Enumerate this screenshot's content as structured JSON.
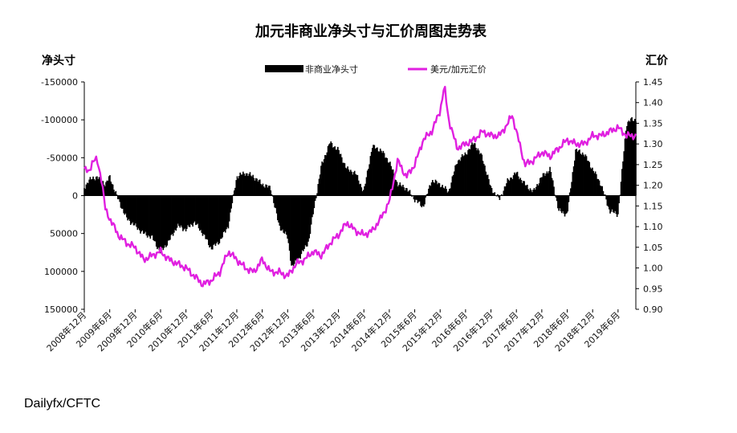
{
  "chart_data": {
    "type": "bar+line",
    "title": "加元非商业净头寸与汇价周图走势表",
    "left_axis_label": "净头寸",
    "right_axis_label": "汇价",
    "source": "Dailyfx/CFTC",
    "left_axis": {
      "min": -150000,
      "max": 150000,
      "reversed": true,
      "ticks": [
        "-150000",
        "-100000",
        "-50000",
        "0",
        "50000",
        "100000",
        "150000"
      ]
    },
    "right_axis": {
      "min": 0.9,
      "max": 1.45,
      "ticks": [
        "1.45",
        "1.40",
        "1.35",
        "1.30",
        "1.25",
        "1.20",
        "1.15",
        "1.10",
        "1.05",
        "1.00",
        "0.95",
        "0.90"
      ]
    },
    "x_tick_labels": [
      "2008年12月",
      "2009年6月",
      "2009年12月",
      "2010年6月",
      "2010年12月",
      "2011年6月",
      "2011年12月",
      "2012年6月",
      "2012年12月",
      "2013年6月",
      "2013年12月",
      "2014年6月",
      "2014年12月",
      "2015年6月",
      "2015年12月",
      "2016年6月",
      "2016年12月",
      "2017年6月",
      "2017年12月",
      "2018年6月",
      "2018年12月",
      "2019年6月"
    ],
    "legend": {
      "position": "top-center",
      "entries": [
        {
          "name": "非商业净头寸",
          "color": "#000000"
        },
        {
          "name": "美元/加元汇价",
          "color": "#e020e0"
        }
      ]
    },
    "series": [
      {
        "name": "非商业净头寸",
        "kind": "bar",
        "color": "#000000",
        "x": [
          "2008-12",
          "2009-01",
          "2009-03",
          "2009-05",
          "2009-06",
          "2009-08",
          "2009-10",
          "2009-12",
          "2010-02",
          "2010-04",
          "2010-06",
          "2010-08",
          "2010-10",
          "2010-12",
          "2011-02",
          "2011-04",
          "2011-06",
          "2011-08",
          "2011-10",
          "2011-12",
          "2012-02",
          "2012-04",
          "2012-06",
          "2012-08",
          "2012-10",
          "2012-12",
          "2013-01",
          "2013-03",
          "2013-05",
          "2013-06",
          "2013-08",
          "2013-10",
          "2013-12",
          "2014-02",
          "2014-04",
          "2014-06",
          "2014-08",
          "2014-10",
          "2014-12",
          "2015-02",
          "2015-04",
          "2015-06",
          "2015-08",
          "2015-10",
          "2015-12",
          "2016-02",
          "2016-04",
          "2016-06",
          "2016-08",
          "2016-10",
          "2016-12",
          "2017-02",
          "2017-04",
          "2017-06",
          "2017-08",
          "2017-10",
          "2017-12",
          "2018-02",
          "2018-04",
          "2018-06",
          "2018-08",
          "2018-10",
          "2018-12",
          "2019-02",
          "2019-04",
          "2019-06",
          "2019-08",
          "2019-09"
        ],
        "values": [
          -10000,
          -20000,
          -25000,
          -15000,
          -25000,
          5000,
          30000,
          40000,
          50000,
          55000,
          75000,
          60000,
          40000,
          45000,
          35000,
          50000,
          70000,
          60000,
          40000,
          -25000,
          -30000,
          -25000,
          -15000,
          -10000,
          40000,
          55000,
          95000,
          80000,
          60000,
          25000,
          -40000,
          -70000,
          -60000,
          -35000,
          -30000,
          -5000,
          -65000,
          -60000,
          -45000,
          -15000,
          -10000,
          5000,
          15000,
          -20000,
          -15000,
          -5000,
          -45000,
          -55000,
          -70000,
          -50000,
          -10000,
          5000,
          -20000,
          -30000,
          -15000,
          -5000,
          -25000,
          -35000,
          20000,
          25000,
          -60000,
          -55000,
          -35000,
          -15000,
          20000,
          25000,
          -95000,
          -100000
        ]
      },
      {
        "name": "美元/加元汇价",
        "kind": "line",
        "color": "#e020e0",
        "x": [
          "2008-12",
          "2009-01",
          "2009-02",
          "2009-03",
          "2009-04",
          "2009-05",
          "2009-06",
          "2009-08",
          "2009-10",
          "2009-12",
          "2010-02",
          "2010-04",
          "2010-06",
          "2010-08",
          "2010-10",
          "2010-12",
          "2011-02",
          "2011-04",
          "2011-06",
          "2011-08",
          "2011-10",
          "2011-12",
          "2012-02",
          "2012-04",
          "2012-06",
          "2012-08",
          "2012-10",
          "2012-12",
          "2013-02",
          "2013-04",
          "2013-06",
          "2013-08",
          "2013-10",
          "2013-12",
          "2014-02",
          "2014-04",
          "2014-06",
          "2014-08",
          "2014-10",
          "2014-12",
          "2015-02",
          "2015-04",
          "2015-06",
          "2015-08",
          "2015-10",
          "2015-12",
          "2016-01",
          "2016-02",
          "2016-04",
          "2016-06",
          "2016-08",
          "2016-10",
          "2016-12",
          "2017-02",
          "2017-04",
          "2017-05",
          "2017-06",
          "2017-08",
          "2017-10",
          "2017-12",
          "2018-02",
          "2018-04",
          "2018-06",
          "2018-08",
          "2018-10",
          "2018-12",
          "2019-02",
          "2019-04",
          "2019-06",
          "2019-08",
          "2019-09"
        ],
        "values": [
          1.24,
          1.23,
          1.26,
          1.26,
          1.22,
          1.14,
          1.12,
          1.08,
          1.06,
          1.05,
          1.02,
          1.03,
          1.04,
          1.02,
          1.01,
          1.0,
          0.98,
          0.96,
          0.97,
          0.99,
          1.04,
          1.02,
          1.0,
          0.99,
          1.02,
          0.99,
          0.99,
          0.98,
          1.01,
          1.02,
          1.04,
          1.03,
          1.06,
          1.08,
          1.11,
          1.09,
          1.08,
          1.09,
          1.12,
          1.16,
          1.26,
          1.22,
          1.25,
          1.31,
          1.33,
          1.38,
          1.44,
          1.36,
          1.29,
          1.3,
          1.31,
          1.33,
          1.32,
          1.32,
          1.35,
          1.37,
          1.33,
          1.25,
          1.26,
          1.28,
          1.27,
          1.29,
          1.31,
          1.3,
          1.3,
          1.32,
          1.32,
          1.33,
          1.34,
          1.32,
          1.32
        ]
      }
    ]
  }
}
